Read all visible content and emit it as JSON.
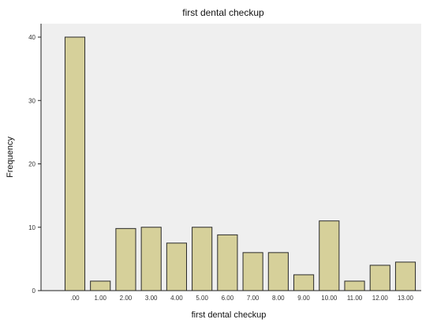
{
  "chart_data": {
    "type": "bar",
    "title": "first dental checkup",
    "xlabel": "first dental checkup",
    "ylabel": "Frequency",
    "categories": [
      ".00",
      "1.00",
      "2.00",
      "3.00",
      "4.00",
      "5.00",
      "6.00",
      "7.00",
      "8.00",
      "9.00",
      "10.00",
      "11.00",
      "12.00",
      "13.00"
    ],
    "values": [
      40,
      1.5,
      9.8,
      10,
      7.5,
      10,
      8.8,
      6,
      6,
      2.5,
      11,
      1.5,
      4,
      4.5
    ],
    "yticks": [
      "0",
      "10",
      "20",
      "30",
      "40"
    ],
    "ylim": [
      0,
      40
    ],
    "grid": false,
    "colors": {
      "bar_fill": "#d6d09a",
      "bar_stroke": "#2a2a2a",
      "plot_bg": "#efefef"
    }
  }
}
